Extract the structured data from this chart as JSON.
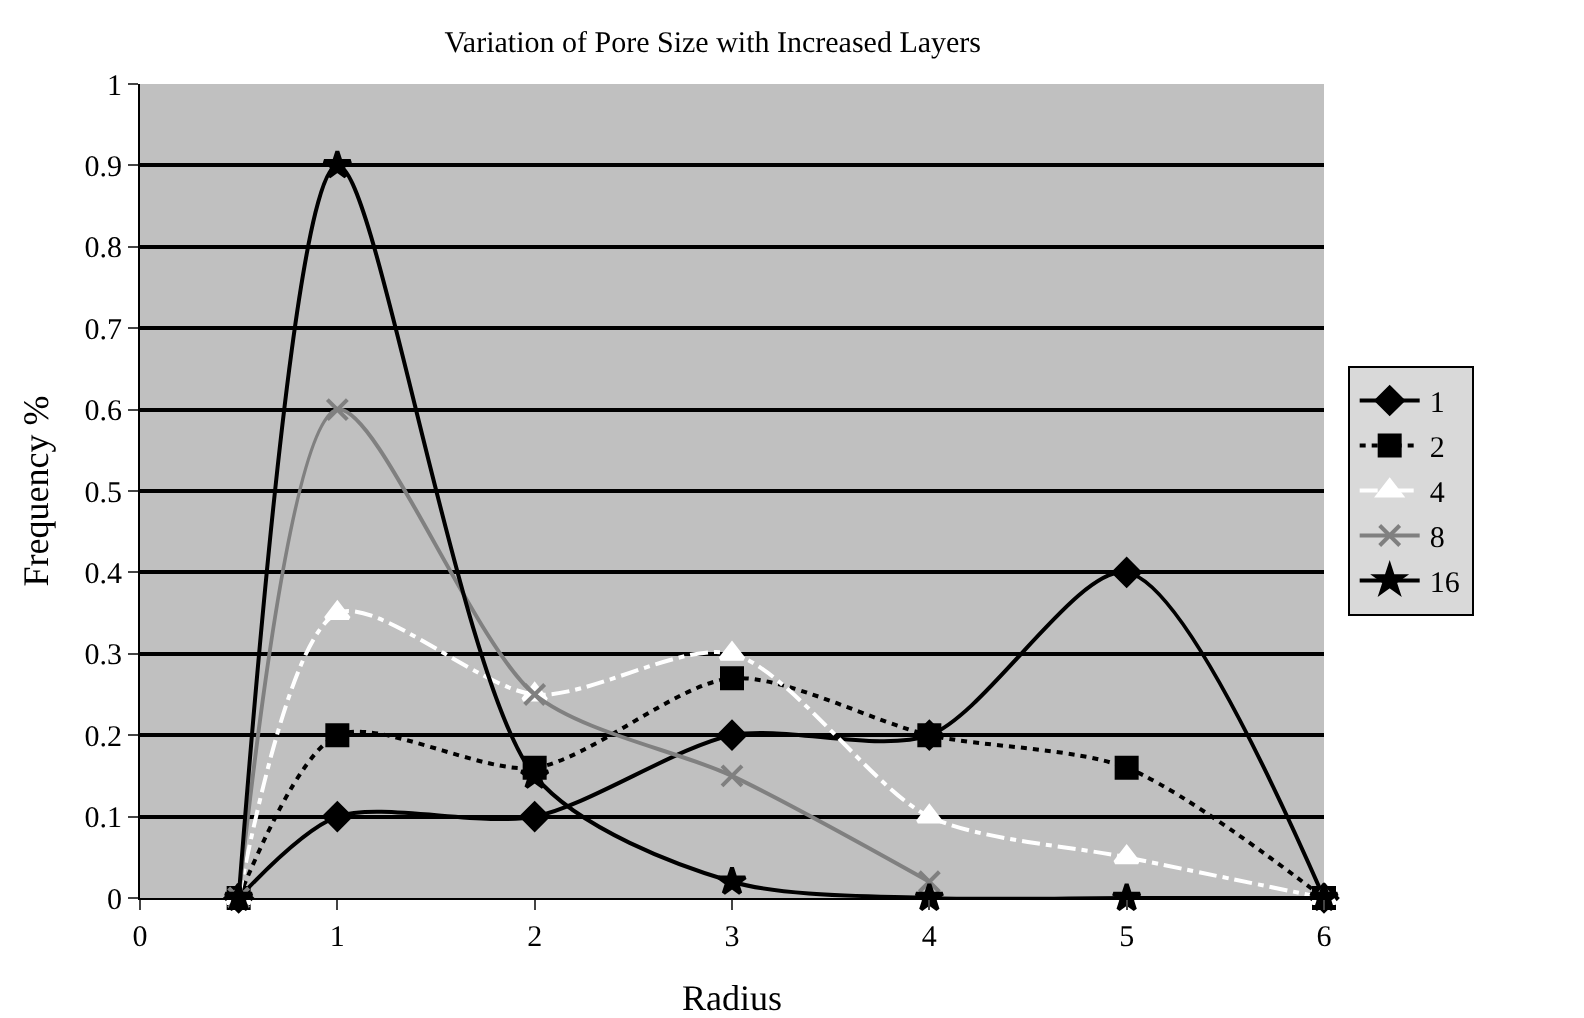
{
  "chart_data": {
    "type": "line",
    "title": "Variation of Pore Size with Increased Layers",
    "xlabel": "Radius",
    "ylabel": "Frequency %",
    "x": [
      0.5,
      1,
      2,
      3,
      4,
      5,
      6
    ],
    "series": [
      {
        "name": "1",
        "color": "#000000",
        "marker": "diamond",
        "line_style": "solid",
        "values": [
          0,
          0.1,
          0.1,
          0.2,
          0.2,
          0.4,
          0
        ]
      },
      {
        "name": "2",
        "color": "#000000",
        "marker": "square",
        "line_style": "dotted",
        "values": [
          0,
          0.2,
          0.16,
          0.27,
          0.2,
          0.16,
          0
        ]
      },
      {
        "name": "4",
        "color": "#ffffff",
        "marker": "triangle",
        "line_style": "dashed",
        "values": [
          0,
          0.35,
          0.25,
          0.3,
          0.1,
          0.05,
          0
        ]
      },
      {
        "name": "8",
        "color": "#808080",
        "marker": "cross",
        "line_style": "solid",
        "values": [
          0,
          0.6,
          0.25,
          0.15,
          0.02,
          null,
          null
        ]
      },
      {
        "name": "16",
        "color": "#000000",
        "marker": "star",
        "line_style": "solid",
        "values": [
          0,
          0.9,
          0.15,
          0.02,
          0,
          0,
          0
        ]
      }
    ],
    "xlim": [
      0,
      6
    ],
    "xticks": [
      0,
      1,
      2,
      3,
      4,
      5,
      6
    ],
    "ylim": [
      0,
      1
    ],
    "yticks": [
      0,
      0.1,
      0.2,
      0.3,
      0.4,
      0.5,
      0.6,
      0.7,
      0.8,
      0.9,
      1
    ],
    "grid": "y",
    "legend": "right"
  }
}
